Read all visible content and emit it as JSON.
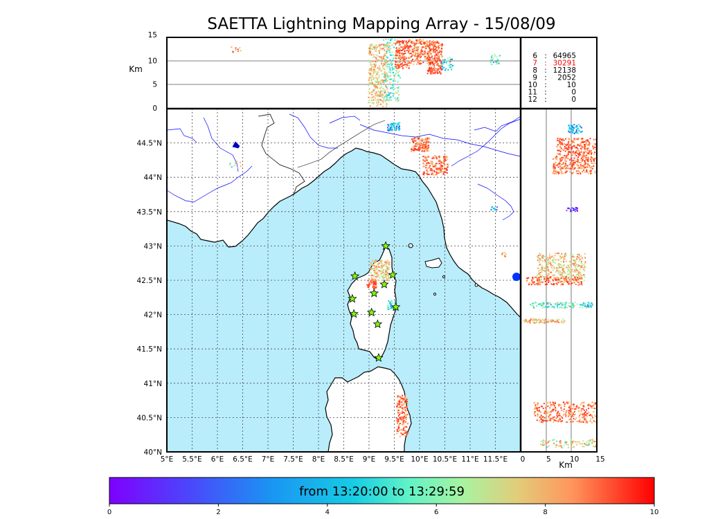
{
  "title": "SAETTA Lightning Mapping Array - 15/08/09",
  "colorbar": {
    "label": "from 13:20:00 to 13:29:59",
    "ticks": [
      "0",
      "2",
      "4",
      "6",
      "8",
      "10"
    ],
    "range": [
      0,
      10
    ]
  },
  "altitude_panel": {
    "unit": "Km",
    "y_ticks": [
      "0",
      "5",
      "10",
      "15"
    ],
    "x_ticks": [
      "0",
      "5",
      "10",
      "15"
    ]
  },
  "map": {
    "lon_ticks": [
      "5°E",
      "5.5°E",
      "6°E",
      "6.5°E",
      "7°E",
      "7.5°E",
      "8°E",
      "8.5°E",
      "9°E",
      "9.5°E",
      "10°E",
      "10.5°E",
      "11°E",
      "11.5°E"
    ],
    "lat_ticks": [
      "40°N",
      "40.5°N",
      "41°N",
      "41.5°N",
      "42°N",
      "42.5°N",
      "43°N",
      "43.5°N",
      "44°N",
      "44.5°N"
    ],
    "lon_range": [
      5,
      12
    ],
    "lat_range": [
      40,
      45
    ],
    "sea_color": "#b9edfb",
    "border_color": "#000000",
    "river_color": "#0000ff"
  },
  "stations_table": [
    {
      "stations": "6",
      "sep": ":",
      "count": "64965",
      "color": "#000000"
    },
    {
      "stations": "7",
      "sep": ":",
      "count": "30291",
      "color": "#ff0000"
    },
    {
      "stations": "8",
      "sep": ":",
      "count": "12138",
      "color": "#000000"
    },
    {
      "stations": "9",
      "sep": ":",
      "count": "2052",
      "color": "#000000"
    },
    {
      "stations": "10",
      "sep": ":",
      "count": "10",
      "color": "#000000"
    },
    {
      "stations": "11",
      "sep": ":",
      "count": "0",
      "color": "#000000"
    },
    {
      "stations": "12",
      "sep": ":",
      "count": "0",
      "color": "#000000"
    }
  ],
  "station_markers": [
    {
      "lon": 9.33,
      "lat": 43.0
    },
    {
      "lon": 8.72,
      "lat": 42.56
    },
    {
      "lon": 9.47,
      "lat": 42.58
    },
    {
      "lon": 9.3,
      "lat": 42.44
    },
    {
      "lon": 9.1,
      "lat": 42.31
    },
    {
      "lon": 8.67,
      "lat": 42.23
    },
    {
      "lon": 9.53,
      "lat": 42.11
    },
    {
      "lon": 9.05,
      "lat": 42.03
    },
    {
      "lon": 8.7,
      "lat": 42.01
    },
    {
      "lon": 9.17,
      "lat": 41.86
    },
    {
      "lon": 9.19,
      "lat": 41.37
    }
  ]
}
